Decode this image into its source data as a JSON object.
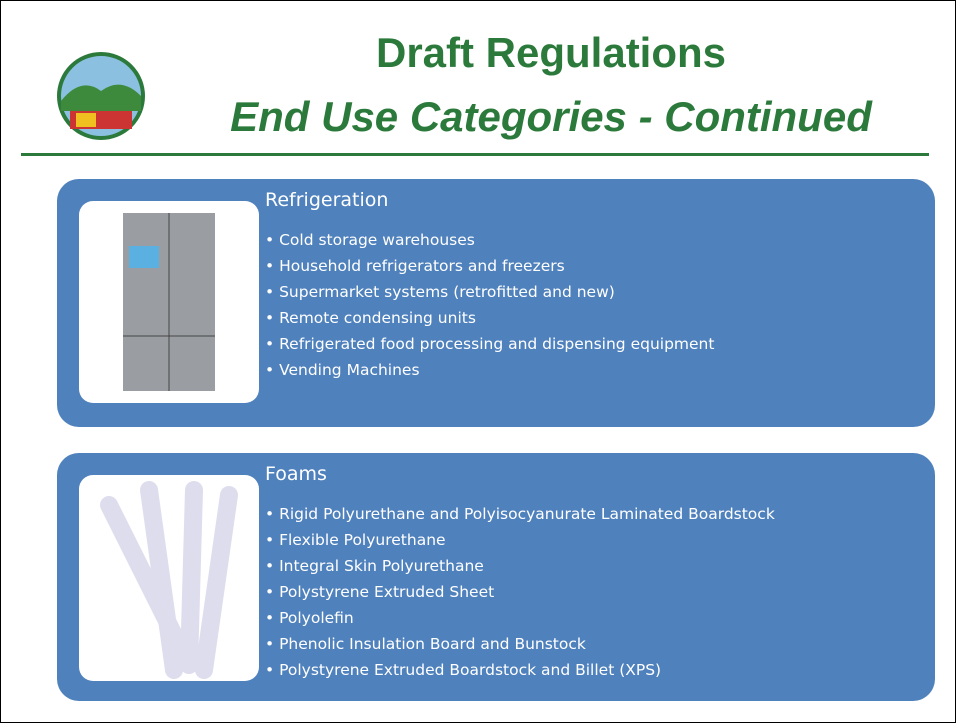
{
  "header": {
    "title": "Draft Regulations",
    "subtitle": "End Use Categories - Continued"
  },
  "sections": [
    {
      "heading": "Refrigeration",
      "items": [
        "Cold storage warehouses",
        "Household refrigerators and freezers",
        "Supermarket systems (retrofitted and new)",
        "Remote condensing units",
        "Refrigerated food processing and dispensing equipment",
        "Vending Machines"
      ]
    },
    {
      "heading": "Foams",
      "items": [
        "Rigid Polyurethane and Polyisocyanurate Laminated Boardstock",
        "Flexible Polyurethane",
        "Integral Skin Polyurethane",
        "Polystyrene Extruded Sheet",
        "Polyolefin",
        "Phenolic Insulation Board and Bunstock",
        "Polystyrene Extruded Boardstock and Billet (XPS)"
      ]
    }
  ]
}
